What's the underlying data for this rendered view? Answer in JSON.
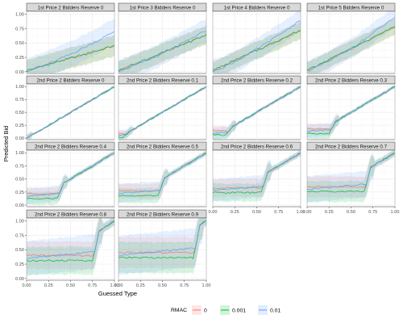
{
  "chart_data": {
    "type": "line",
    "xlabel": "Guessed Type",
    "ylabel": "Predicted Bid",
    "x_ticks": [
      "0.00",
      "0.25",
      "0.50",
      "0.75",
      "1.00"
    ],
    "y_ticks": [
      "0.00",
      "0.25",
      "0.50",
      "0.75",
      "1.00"
    ],
    "xlim": [
      0,
      1
    ],
    "ylim": [
      -0.03,
      1.05
    ],
    "grid": true,
    "legend": {
      "title": "RMAC",
      "placement": "bottom",
      "entries": [
        {
          "label": "0",
          "color": "#f8766d"
        },
        {
          "label": "0.001",
          "color": "#00ba38"
        },
        {
          "label": "0.01",
          "color": "#619cff"
        }
      ]
    },
    "panels": [
      {
        "title": "1st Price 2 Bidders Reserve 0",
        "kind": "first",
        "end": 0.45,
        "end_blue": 0.7,
        "band": 0.18
      },
      {
        "title": "1st Price 3 Bidders Reserve 0",
        "kind": "first",
        "end": 0.64,
        "end_blue": 0.72,
        "band": 0.16
      },
      {
        "title": "1st Price 4 Bidders Reserve 0",
        "kind": "first",
        "end": 0.72,
        "end_blue": 0.9,
        "band": 0.15
      },
      {
        "title": "1st Price 5 Bidders Reserve 0",
        "kind": "first",
        "end": 0.78,
        "end_blue": 0.95,
        "band": 0.14
      },
      {
        "title": "2nd Price 2 Bidders Reserve 0",
        "kind": "second",
        "reserve": 0.0,
        "floor": 0.02,
        "band": 0.06
      },
      {
        "title": "2nd Price 2 Bidders Reserve 0.1",
        "kind": "second",
        "reserve": 0.1,
        "floor": 0.05,
        "band": 0.07
      },
      {
        "title": "2nd Price 2 Bidders Reserve 0.2",
        "kind": "second",
        "reserve": 0.2,
        "floor": 0.1,
        "band": 0.09
      },
      {
        "title": "2nd Price 2 Bidders Reserve 0.3",
        "kind": "second",
        "reserve": 0.3,
        "floor": 0.13,
        "band": 0.1
      },
      {
        "title": "2nd Price 2 Bidders Reserve 0.4",
        "kind": "second",
        "reserve": 0.4,
        "floor": 0.17,
        "band": 0.12
      },
      {
        "title": "2nd Price 2 Bidders Reserve 0.5",
        "kind": "second",
        "reserve": 0.5,
        "floor": 0.22,
        "band": 0.14
      },
      {
        "title": "2nd Price 2 Bidders Reserve 0.6",
        "kind": "second",
        "reserve": 0.6,
        "floor": 0.28,
        "band": 0.17
      },
      {
        "title": "2nd Price 2 Bidders Reserve 0.7",
        "kind": "second",
        "reserve": 0.7,
        "floor": 0.3,
        "band": 0.2
      },
      {
        "title": "2nd Price 2 Bidders Reserve 0.8",
        "kind": "second",
        "reserve": 0.8,
        "floor": 0.35,
        "band": 0.24
      },
      {
        "title": "2nd Price 2 Bidders Reserve 0.9",
        "kind": "second",
        "reserve": 0.9,
        "floor": 0.4,
        "band": 0.27
      }
    ]
  }
}
